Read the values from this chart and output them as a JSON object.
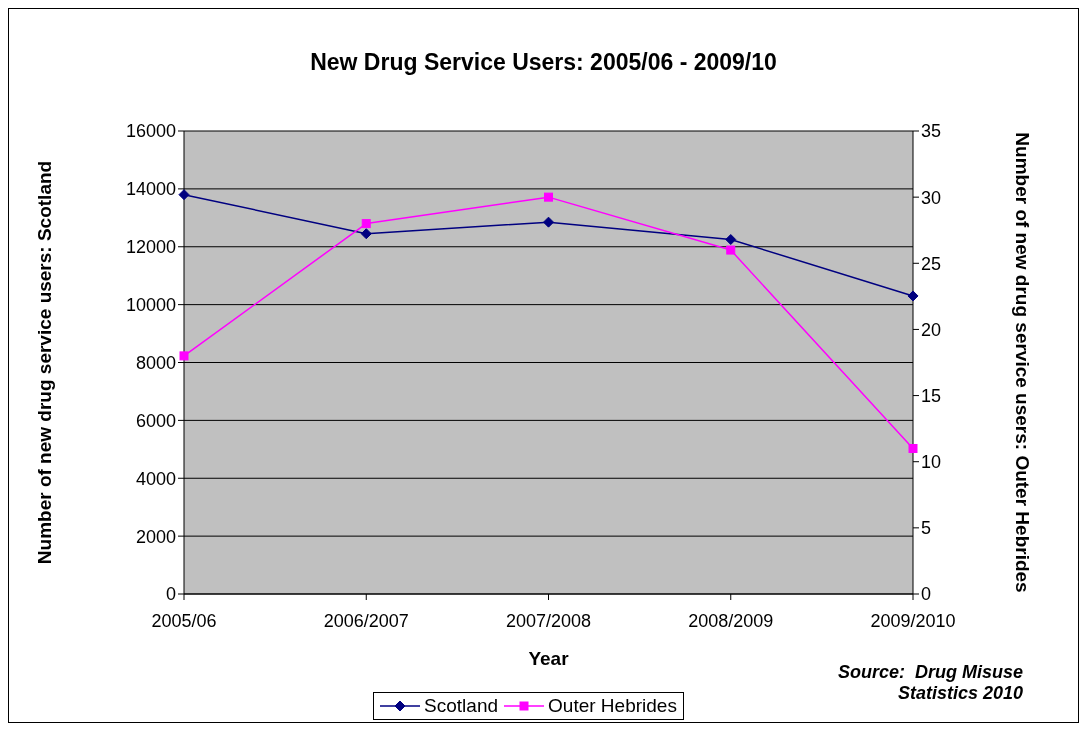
{
  "chart_data": {
    "type": "line",
    "title": "New Drug Service Users: 2005/06 - 2009/10",
    "xlabel": "Year",
    "ylabel": "Number of new drug service users: Scotland",
    "y2label": "Number of new drug service users: Outer Hebrides",
    "categories": [
      "2005/06",
      "2006/2007",
      "2007/2008",
      "2008/2009",
      "2009/2010"
    ],
    "series": [
      {
        "name": "Scotland",
        "color": "#000080",
        "marker": "diamond",
        "values": [
          13800,
          12450,
          12850,
          12250,
          10300
        ]
      },
      {
        "name": "Outer Hebrides",
        "color": "#ff00ff",
        "marker": "square",
        "axis": "y2",
        "values": [
          18,
          28,
          30,
          26,
          11
        ]
      }
    ],
    "ylim": [
      0,
      16000
    ],
    "yticks": [
      0,
      2000,
      4000,
      6000,
      8000,
      10000,
      12000,
      14000,
      16000
    ],
    "y2lim": [
      0,
      35
    ],
    "y2ticks": [
      0,
      5,
      10,
      15,
      20,
      25,
      30,
      35
    ],
    "grid": "y",
    "legend": "bottom",
    "line_style": "solid",
    "annotations": [
      "Source:  Drug Misuse Statistics 2010"
    ]
  }
}
